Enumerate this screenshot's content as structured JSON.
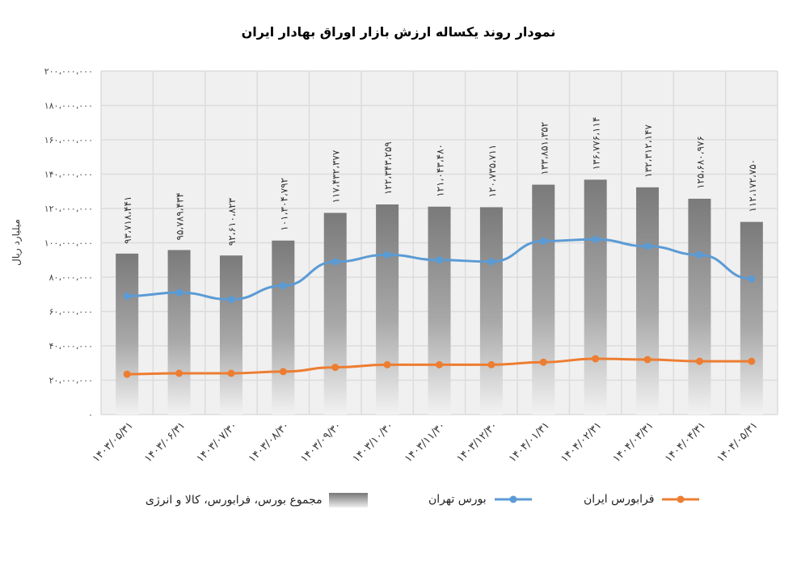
{
  "chart_data": {
    "type": "bar",
    "title": "نمودار روند یکساله ارزش بازار اوراق بهادار ایران",
    "xlabel": "",
    "ylabel": "میلیارد ریال",
    "ylim": [
      0,
      200000000
    ],
    "yticks": [
      0,
      20000000,
      40000000,
      60000000,
      80000000,
      100000000,
      120000000,
      140000000,
      160000000,
      180000000,
      200000000
    ],
    "ytick_labels": [
      "۰",
      "۲۰،۰۰۰،۰۰۰",
      "۴۰،۰۰۰،۰۰۰",
      "۶۰،۰۰۰،۰۰۰",
      "۸۰،۰۰۰،۰۰۰",
      "۱۰۰،۰۰۰،۰۰۰",
      "۱۲۰،۰۰۰،۰۰۰",
      "۱۴۰،۰۰۰،۰۰۰",
      "۱۶۰،۰۰۰،۰۰۰",
      "۱۸۰،۰۰۰،۰۰۰",
      "۲۰۰،۰۰۰،۰۰۰"
    ],
    "grid": true,
    "legend_position": "bottom",
    "categories": [
      "۱۴۰۳/۰۵/۳۱",
      "۱۴۰۳/۰۶/۳۱",
      "۱۴۰۳/۰۷/۳۰",
      "۱۴۰۳/۰۸/۳۰",
      "۱۴۰۳/۰۹/۳۰",
      "۱۴۰۳/۱۰/۳۰",
      "۱۴۰۳/۱۱/۳۰",
      "۱۴۰۳/۱۲/۳۰",
      "۱۴۰۴/۰۱/۳۱",
      "۱۴۰۴/۰۲/۳۱",
      "۱۴۰۴/۰۳/۳۱",
      "۱۴۰۴/۰۴/۳۱",
      "۱۴۰۴/۰۵/۳۱"
    ],
    "series": [
      {
        "name": "مجموع بورس، فرابورس، کالا و انرژی",
        "type": "bar",
        "values": [
          93718441,
          95789434,
          92610823,
          101304792,
          117432377,
          122343259,
          121043480,
          120735711,
          133851352,
          136776114,
          132312147,
          125680976,
          112172750
        ],
        "labels": [
          "۹۳،۷۱۸،۴۴۱",
          "۹۵،۷۸۹،۴۳۴",
          "۹۲،۶۱۰،۸۲۳",
          "۱۰۱،۳۰۴،۷۹۲",
          "۱۱۷،۴۳۲،۳۷۷",
          "۱۲۲،۳۴۳،۲۵۹",
          "۱۲۱،۰۴۳،۴۸۰",
          "۱۲۰،۷۳۵،۷۱۱",
          "۱۳۳،۸۵۱،۳۵۲",
          "۱۳۶،۷۷۶،۱۱۴",
          "۱۳۲،۳۱۲،۱۴۷",
          "۱۲۵،۶۸۰،۹۷۶",
          "۱۱۲،۱۷۲،۷۵۰"
        ],
        "color": "#7f7f7f"
      },
      {
        "name": "بورس تهران",
        "type": "line",
        "values": [
          69000000,
          71000000,
          67000000,
          75000000,
          89000000,
          93000000,
          90000000,
          89000000,
          101000000,
          102000000,
          98000000,
          93000000,
          79000000
        ],
        "color": "#5b9bd5"
      },
      {
        "name": "فرابورس ایران",
        "type": "line",
        "values": [
          23500000,
          24000000,
          24000000,
          25000000,
          27500000,
          29000000,
          29000000,
          29000000,
          30500000,
          32500000,
          32000000,
          31000000,
          31000000
        ],
        "color": "#ed7d31"
      }
    ]
  }
}
